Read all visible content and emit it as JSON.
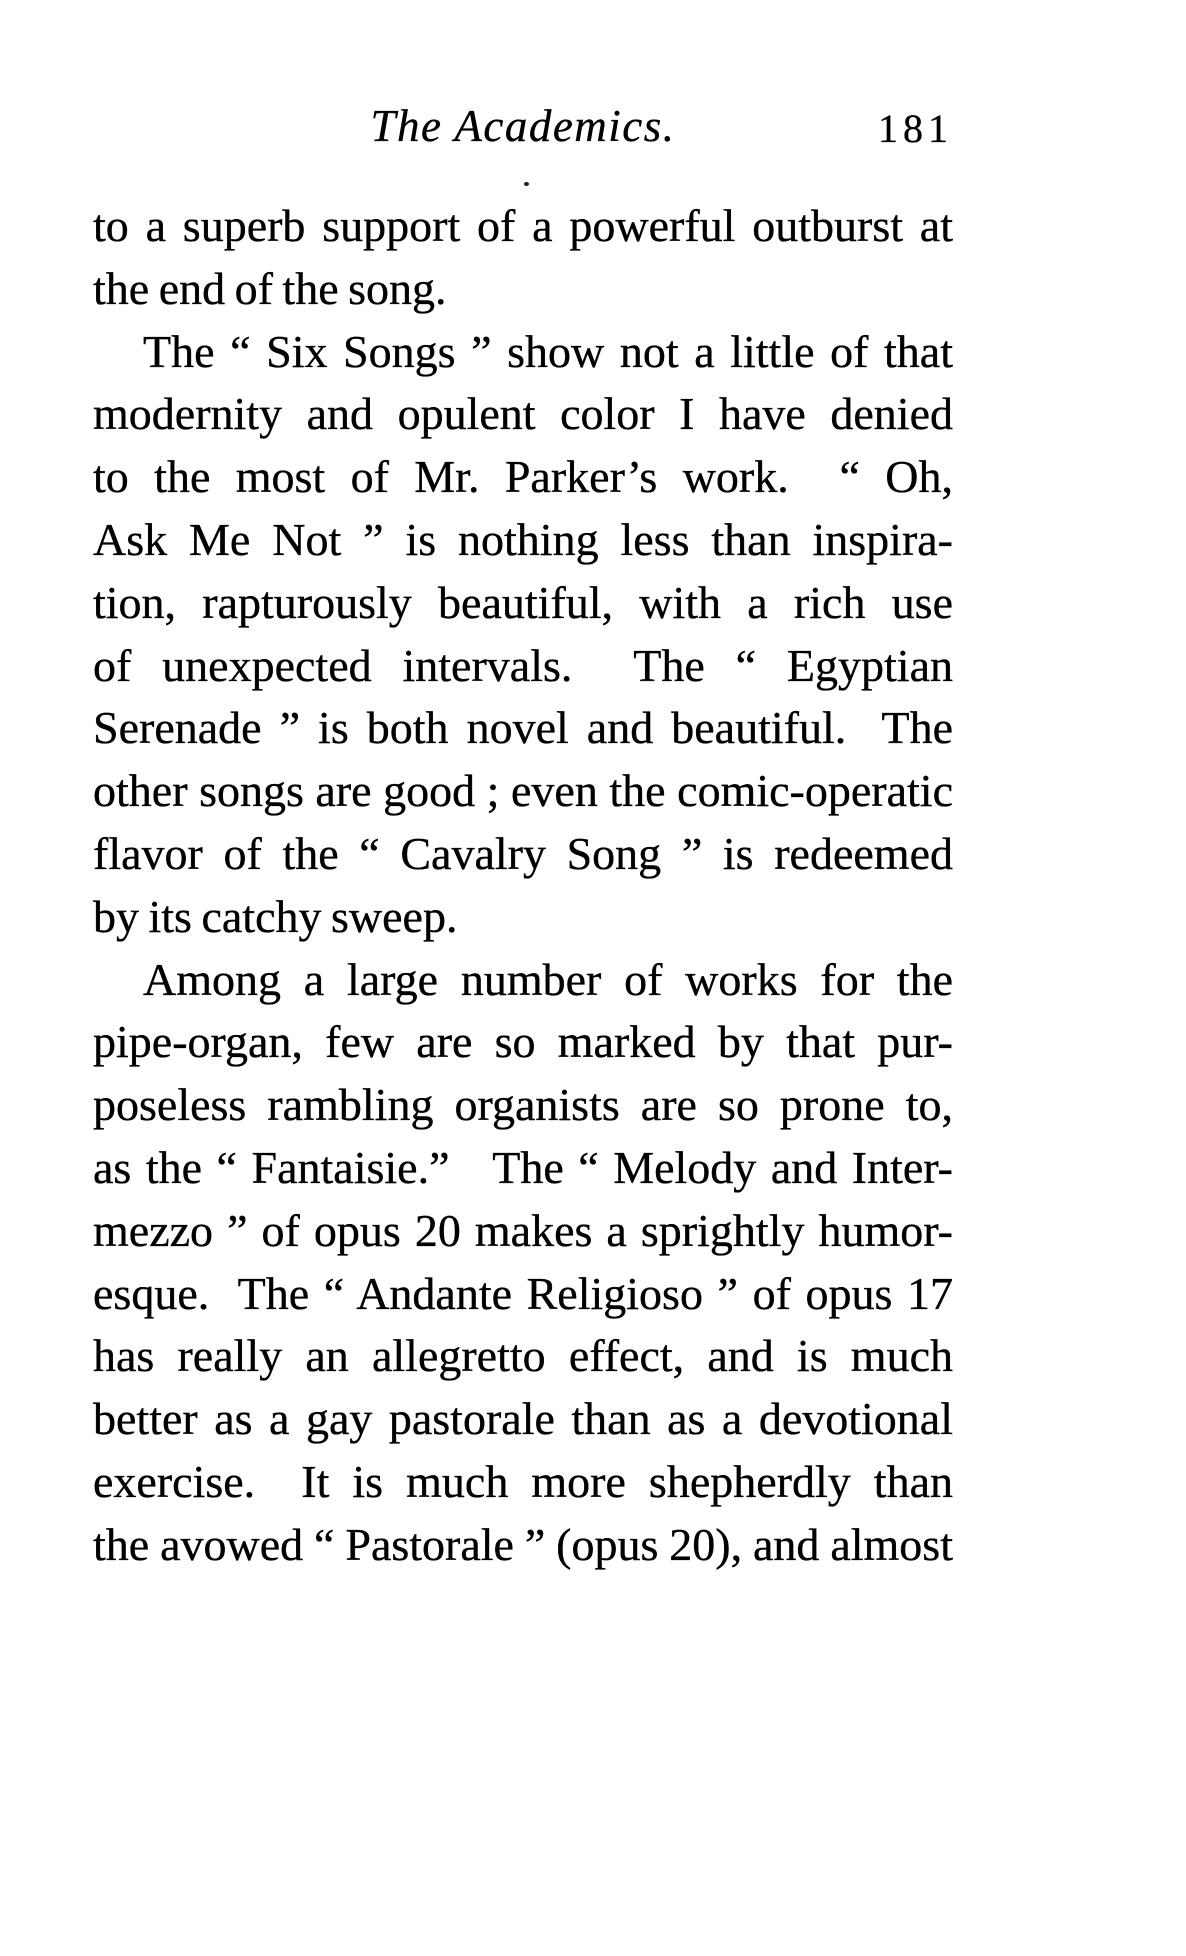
{
  "document": {
    "header": {
      "title": "The Academics.",
      "page_number": "181"
    },
    "body": {
      "lines": [
        {
          "text": "to a superb support of a powerful outburst at",
          "justify": true,
          "indent": false
        },
        {
          "text": "the end of the song.",
          "justify": false,
          "indent": false
        },
        {
          "text": "The “ Six Songs ” show not a little of that",
          "justify": true,
          "indent": true
        },
        {
          "text": "modernity and opulent color I have denied",
          "justify": true,
          "indent": false
        },
        {
          "text": "to the most of Mr. Parker’s work.  “ Oh,",
          "justify": true,
          "indent": false
        },
        {
          "text": "Ask Me Not ” is nothing less than inspira-",
          "justify": true,
          "indent": false
        },
        {
          "text": "tion, rapturously beautiful, with a rich use",
          "justify": true,
          "indent": false
        },
        {
          "text": "of unexpected intervals.  The “ Egyptian",
          "justify": true,
          "indent": false
        },
        {
          "text": "Serenade ” is both novel and beautiful.  The",
          "justify": true,
          "indent": false
        },
        {
          "text": "other songs are good ; even the comic-operatic",
          "justify": true,
          "indent": false
        },
        {
          "text": "flavor of the “ Cavalry Song ” is redeemed",
          "justify": true,
          "indent": false
        },
        {
          "text": "by its catchy sweep.",
          "justify": false,
          "indent": false
        },
        {
          "text": "Among a large number of works for the",
          "justify": true,
          "indent": true
        },
        {
          "text": "pipe-organ, few are so marked by that pur-",
          "justify": true,
          "indent": false
        },
        {
          "text": "poseless rambling organists are so prone to,",
          "justify": true,
          "indent": false
        },
        {
          "text": "as the “ Fantaisie.”   The “ Melody and Inter-",
          "justify": true,
          "indent": false
        },
        {
          "text": "mezzo ” of opus 20 makes a sprightly humor-",
          "justify": true,
          "indent": false
        },
        {
          "text": "esque.  The “ Andante Religioso ” of opus 17",
          "justify": true,
          "indent": false
        },
        {
          "text": "has really an allegretto effect, and is much",
          "justify": true,
          "indent": false
        },
        {
          "text": "better as a gay pastorale than as a devotional",
          "justify": true,
          "indent": false
        },
        {
          "text": "exercise.  It is much more shepherdly than",
          "justify": true,
          "indent": false
        },
        {
          "text": "the avowed “ Pastorale ” (opus 20), and almost",
          "justify": true,
          "indent": false
        }
      ]
    }
  }
}
